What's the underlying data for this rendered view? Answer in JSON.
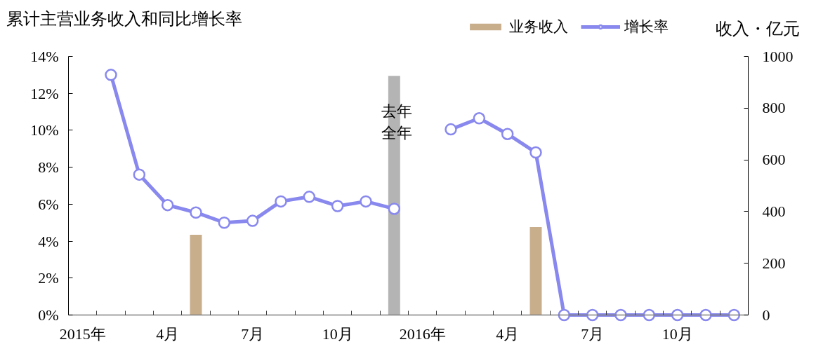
{
  "chart_data": {
    "type": "bar",
    "title": "累计主营业务收入和同比增长率",
    "y2label": "收入・亿元",
    "categories": [
      "2015年",
      null,
      null,
      "4月",
      null,
      null,
      "7月",
      null,
      null,
      "10月",
      null,
      null,
      "2016年",
      null,
      null,
      "4月",
      null,
      null,
      "7月",
      null,
      null,
      "10月",
      null,
      null
    ],
    "series": [
      {
        "name": "业务收入",
        "axis": "y2",
        "values": [
          null,
          null,
          null,
          null,
          310,
          null,
          null,
          null,
          null,
          null,
          null,
          925,
          null,
          null,
          null,
          null,
          340,
          null,
          null,
          null,
          null,
          null,
          null,
          null
        ],
        "colors": [
          null,
          null,
          null,
          null,
          "#c9ae8c",
          null,
          null,
          null,
          null,
          null,
          null,
          "#b4b4b4",
          null,
          null,
          null,
          null,
          "#c9ae8c",
          null,
          null,
          null,
          null,
          null,
          null,
          null
        ],
        "value_labels": [
          null,
          null,
          null,
          null,
          null,
          null,
          null,
          null,
          null,
          null,
          null,
          "去年全年",
          null,
          null,
          null,
          null,
          null,
          null,
          null,
          null,
          null,
          null,
          null,
          null
        ]
      },
      {
        "name": "增长率",
        "type": "line",
        "color": "#8888ee",
        "marker": "circle",
        "values": [
          null,
          13.0,
          7.6,
          5.95,
          5.55,
          5.0,
          5.1,
          6.15,
          6.4,
          5.9,
          6.15,
          5.75,
          null,
          10.05,
          10.65,
          9.8,
          8.8,
          0,
          0,
          0,
          0,
          0,
          0,
          0
        ]
      }
    ],
    "ylim": [
      0,
      14
    ],
    "yticks": [
      {
        "value": 0,
        "label": "0%"
      },
      {
        "value": 2,
        "label": "2%"
      },
      {
        "value": 4,
        "label": "4%"
      },
      {
        "value": 6,
        "label": "6%"
      },
      {
        "value": 8,
        "label": "8%"
      },
      {
        "value": 10,
        "label": "10%"
      },
      {
        "value": 12,
        "label": "12%"
      },
      {
        "value": 14,
        "label": "14%"
      }
    ],
    "y2lim": [
      0,
      1000
    ],
    "y2ticks": [
      0,
      200,
      400,
      600,
      800,
      1000
    ],
    "legend": "top right"
  }
}
